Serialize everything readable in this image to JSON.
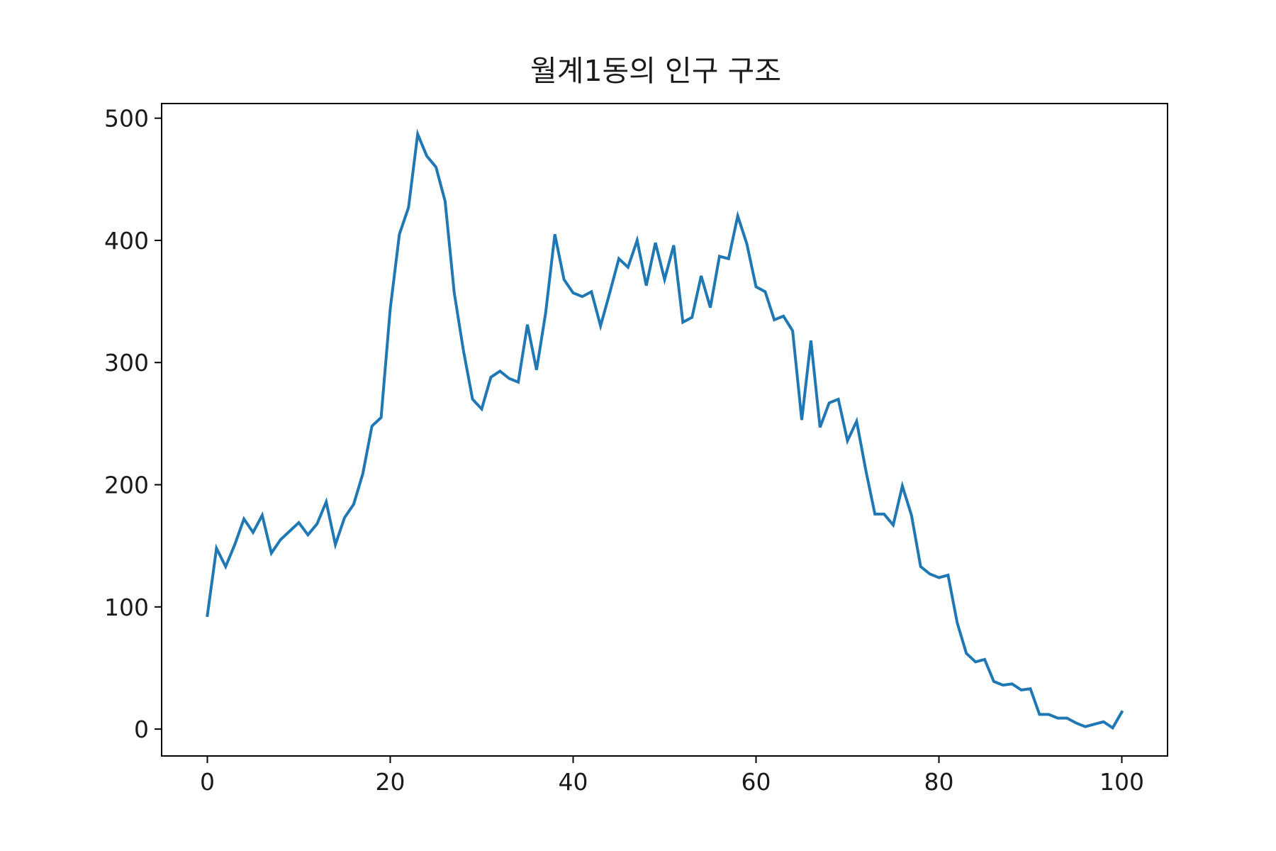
{
  "chart_data": {
    "type": "line",
    "title": "월계1동의 인구 구조",
    "xlabel": "",
    "ylabel": "",
    "xlim": [
      -5,
      105
    ],
    "ylim": [
      -22,
      512
    ],
    "xticks": [
      0,
      20,
      40,
      60,
      80,
      100
    ],
    "yticks": [
      0,
      100,
      200,
      300,
      400,
      500
    ],
    "grid": false,
    "legend": "none",
    "series": [
      {
        "color": "#1f77b4",
        "x": [
          0,
          1,
          2,
          3,
          4,
          5,
          6,
          7,
          8,
          9,
          10,
          11,
          12,
          13,
          14,
          15,
          16,
          17,
          18,
          19,
          20,
          21,
          22,
          23,
          24,
          25,
          26,
          27,
          28,
          29,
          30,
          31,
          32,
          33,
          34,
          35,
          36,
          37,
          38,
          39,
          40,
          41,
          42,
          43,
          44,
          45,
          46,
          47,
          48,
          49,
          50,
          51,
          52,
          53,
          54,
          55,
          56,
          57,
          58,
          59,
          60,
          61,
          62,
          63,
          64,
          65,
          66,
          67,
          68,
          69,
          70,
          71,
          72,
          73,
          74,
          75,
          76,
          77,
          78,
          79,
          80,
          81,
          82,
          83,
          84,
          85,
          86,
          87,
          88,
          89,
          90,
          91,
          92,
          93,
          94,
          95,
          96,
          97,
          98,
          99,
          100
        ],
        "values": [
          93,
          148,
          133,
          151,
          172,
          161,
          175,
          144,
          155,
          162,
          169,
          159,
          168,
          186,
          151,
          173,
          184,
          209,
          248,
          255,
          344,
          405,
          427,
          487,
          469,
          460,
          432,
          357,
          310,
          270,
          262,
          288,
          293,
          287,
          284,
          331,
          294,
          341,
          405,
          368,
          357,
          354,
          358,
          330,
          357,
          385,
          378,
          400,
          363,
          398,
          368,
          396,
          333,
          337,
          371,
          345,
          387,
          385,
          420,
          397,
          362,
          358,
          335,
          338,
          326,
          253,
          318,
          247,
          267,
          270,
          236,
          252,
          212,
          176,
          176,
          167,
          199,
          175,
          133,
          127,
          124,
          126,
          87,
          62,
          55,
          57,
          39,
          36,
          37,
          32,
          33,
          12,
          12,
          9,
          9,
          5,
          2,
          4,
          6,
          1,
          14
        ]
      }
    ]
  }
}
